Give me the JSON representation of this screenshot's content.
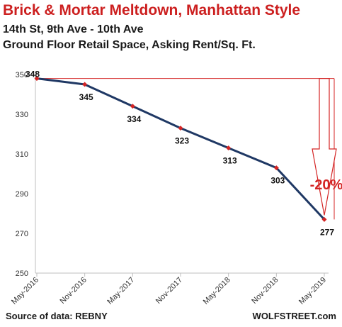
{
  "header": {
    "title": "Brick & Mortar Meltdown, Manhattan Style",
    "subtitle_line1": "14th St, 9th Ave - 10th Ave",
    "subtitle_line2": "Ground Floor Retail Space, Asking Rent/Sq. Ft."
  },
  "footer": {
    "source": "Source of data: REBNY",
    "credit": "WOLFSTREET.com"
  },
  "colors": {
    "title": "#cc1f1f",
    "line": "#1f3864",
    "marker": "#d42424",
    "annotation": "#d42424",
    "axis": "#bfbfbf"
  },
  "chart_data": {
    "type": "line",
    "categories": [
      "May-2016",
      "Nov-2016",
      "May-2017",
      "Nov-2017",
      "May-2018",
      "Nov-2018",
      "May-2019"
    ],
    "values": [
      348,
      345,
      334,
      323,
      313,
      303,
      277
    ],
    "data_labels": [
      "348",
      "345",
      "334",
      "323",
      "313",
      "303",
      "277"
    ],
    "y_ticks": [
      250,
      270,
      290,
      310,
      330,
      350
    ],
    "ylim": [
      250,
      355
    ],
    "grid": false,
    "annotation": "-20%"
  }
}
